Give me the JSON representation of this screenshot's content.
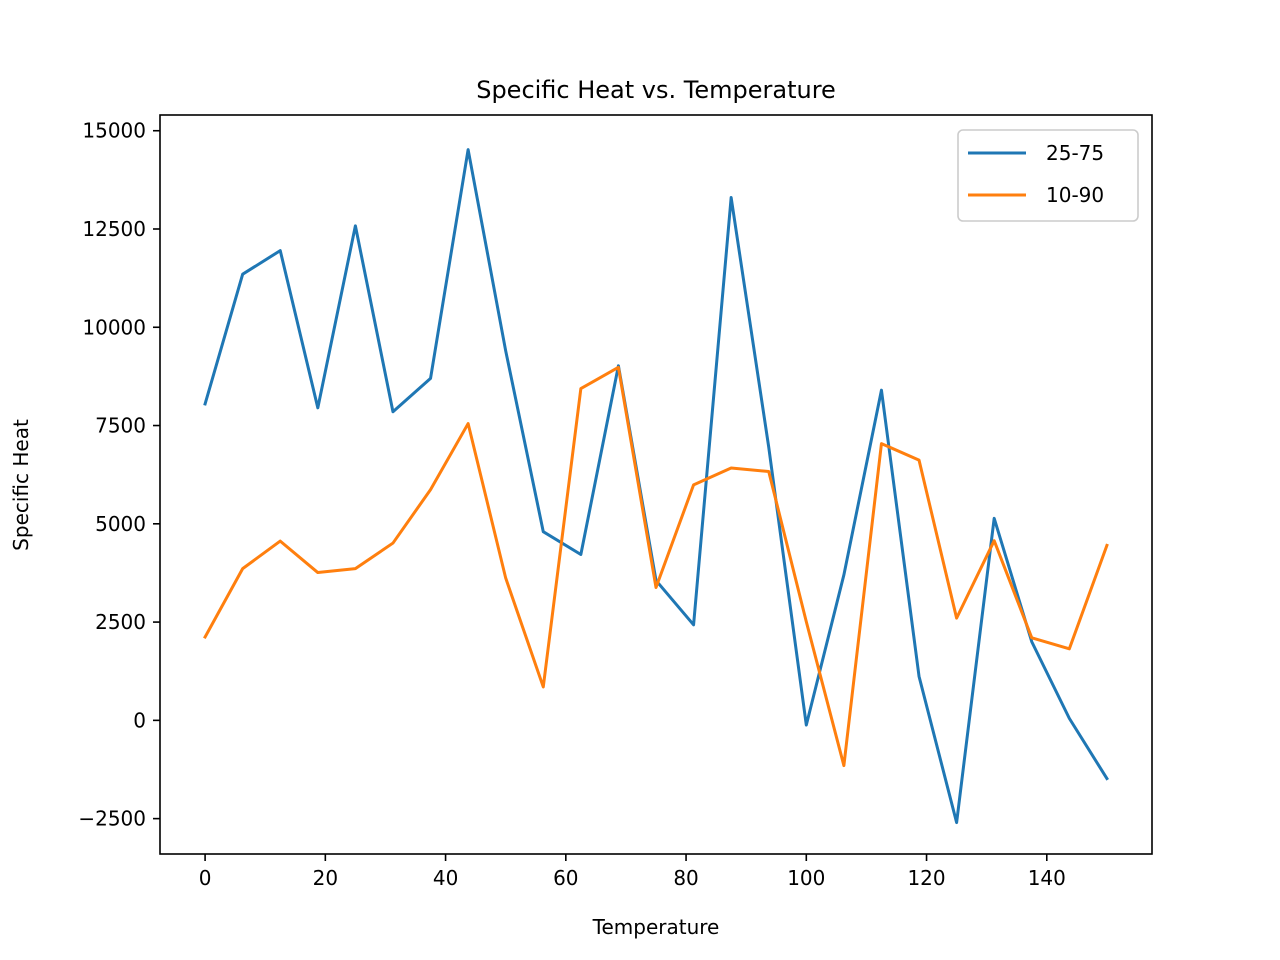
{
  "chart_data": {
    "type": "line",
    "title": "Specific Heat vs. Temperature",
    "xlabel": "Temperature",
    "ylabel": "Specific Heat",
    "xlim": [
      -7.5,
      157.5
    ],
    "ylim": [
      -3400,
      15400
    ],
    "x_ticks": [
      0,
      20,
      40,
      60,
      80,
      100,
      120,
      140
    ],
    "x_tick_labels": [
      "0",
      "20",
      "40",
      "60",
      "80",
      "100",
      "120",
      "140"
    ],
    "y_ticks": [
      -2500,
      0,
      2500,
      5000,
      7500,
      10000,
      12500,
      15000
    ],
    "y_tick_labels": [
      "−2500",
      "0",
      "2500",
      "5000",
      "7500",
      "10000",
      "12500",
      "15000"
    ],
    "grid": false,
    "legend_position": "top-right",
    "x": [
      0,
      6.25,
      12.5,
      18.75,
      25,
      31.25,
      37.5,
      43.75,
      50,
      56.25,
      62.5,
      68.75,
      75,
      81.25,
      87.5,
      93.75,
      100,
      106.25,
      112.5,
      118.75,
      125,
      131.25,
      137.5,
      143.75,
      150
    ],
    "series": [
      {
        "name": "25-75",
        "color": "#1f77b4",
        "values": [
          8050,
          11350,
          11950,
          7950,
          12580,
          7850,
          8700,
          14520,
          9400,
          4800,
          4220,
          9020,
          3560,
          2430,
          13300,
          6950,
          -120,
          3700,
          8400,
          1120,
          -2600,
          5140,
          2000,
          50,
          -1480
        ]
      },
      {
        "name": "10-90",
        "color": "#ff7f0e",
        "values": [
          2120,
          3860,
          4560,
          3760,
          3860,
          4510,
          5870,
          7550,
          3620,
          850,
          8440,
          8980,
          3380,
          5990,
          6420,
          6330,
          2510,
          -1150,
          7040,
          6620,
          2600,
          4570,
          2100,
          1820,
          4450
        ]
      }
    ]
  }
}
